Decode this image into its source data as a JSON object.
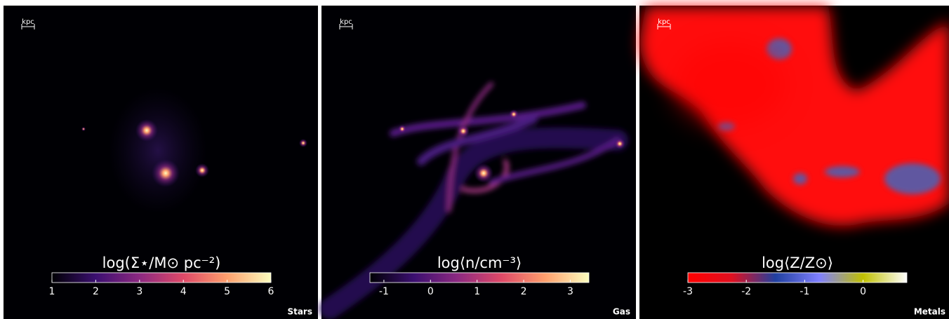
{
  "chart_data": [
    {
      "type": "image",
      "colorbar_title": "log(Σ⋆/M⊙ pc⁻²)",
      "label": "Stars",
      "scale_label": "kpc",
      "clim": [
        1,
        6
      ],
      "cticks": [
        1,
        2,
        3,
        4,
        5,
        6
      ],
      "colormap": [
        "#000004",
        "#3b0f70",
        "#8c2981",
        "#de4968",
        "#fe9f6d",
        "#fcfdbf"
      ]
    },
    {
      "type": "image",
      "colorbar_title": "log⟨n/cm⁻³⟩",
      "label": "Gas",
      "scale_label": "kpc",
      "clim": [
        -1.3,
        3.4
      ],
      "cticks": [
        -1,
        0,
        1,
        2,
        3
      ],
      "colormap": [
        "#000004",
        "#3b0f70",
        "#8c2981",
        "#de4968",
        "#fe9f6d",
        "#fcfdbf"
      ]
    },
    {
      "type": "image",
      "colorbar_title": "log⟨Z/Z⊙⟩",
      "label": "Metals",
      "scale_label": "kpc",
      "clim": [
        -3,
        0.75
      ],
      "cticks": [
        -3,
        -2,
        -1,
        0
      ],
      "colormap": [
        "#ff0000",
        "#e01020",
        "#2040a0",
        "#8080ff",
        "#c0c000",
        "#ffffff"
      ]
    }
  ]
}
